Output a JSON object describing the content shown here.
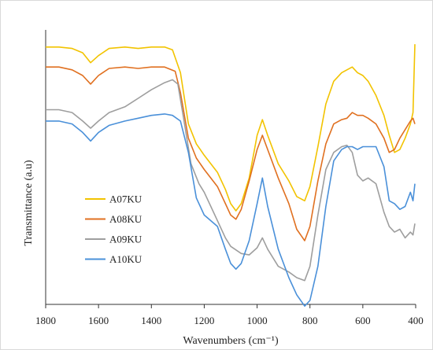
{
  "chart_data": {
    "type": "line",
    "title": "",
    "xlabel": "Wavenumbers (cm⁻¹)",
    "ylabel": "Transmittance (a.u)",
    "xlim": [
      1800,
      400
    ],
    "x_reversed": true,
    "ylim": [
      0,
      100
    ],
    "yticks_shown": false,
    "xticks": [
      1800,
      1600,
      1400,
      1200,
      1000,
      800,
      600,
      400
    ],
    "xtick_labels": [
      "1800",
      "1600",
      "1400",
      "1200",
      "1000",
      "800",
      "600",
      "400"
    ],
    "grid": false,
    "legend_position": "left-center",
    "series": [
      {
        "name": "A07KU",
        "color": "#f2c300",
        "points": [
          [
            1800,
            89
          ],
          [
            1750,
            89
          ],
          [
            1700,
            88.5
          ],
          [
            1660,
            87
          ],
          [
            1630,
            83.5
          ],
          [
            1600,
            86
          ],
          [
            1560,
            88.5
          ],
          [
            1500,
            89
          ],
          [
            1450,
            88.5
          ],
          [
            1400,
            89
          ],
          [
            1350,
            89
          ],
          [
            1320,
            88
          ],
          [
            1290,
            80
          ],
          [
            1260,
            62
          ],
          [
            1230,
            55
          ],
          [
            1200,
            51
          ],
          [
            1150,
            45
          ],
          [
            1120,
            39
          ],
          [
            1100,
            34
          ],
          [
            1080,
            31.5
          ],
          [
            1060,
            34
          ],
          [
            1030,
            43
          ],
          [
            1000,
            58
          ],
          [
            980,
            63.5
          ],
          [
            960,
            58
          ],
          [
            920,
            48
          ],
          [
            880,
            42
          ],
          [
            850,
            36.5
          ],
          [
            820,
            35
          ],
          [
            800,
            40
          ],
          [
            770,
            54
          ],
          [
            740,
            69
          ],
          [
            710,
            77
          ],
          [
            680,
            80
          ],
          [
            660,
            81
          ],
          [
            640,
            82
          ],
          [
            620,
            80
          ],
          [
            600,
            79
          ],
          [
            580,
            77
          ],
          [
            550,
            72
          ],
          [
            520,
            65
          ],
          [
            500,
            58
          ],
          [
            480,
            52
          ],
          [
            460,
            53
          ],
          [
            440,
            57
          ],
          [
            420,
            62
          ],
          [
            410,
            66
          ],
          [
            403,
            90
          ]
        ]
      },
      {
        "name": "A08KU",
        "color": "#e07020",
        "points": [
          [
            1800,
            82
          ],
          [
            1750,
            82
          ],
          [
            1700,
            81
          ],
          [
            1660,
            79
          ],
          [
            1630,
            76
          ],
          [
            1600,
            79
          ],
          [
            1560,
            81.5
          ],
          [
            1500,
            82
          ],
          [
            1450,
            81.5
          ],
          [
            1400,
            82
          ],
          [
            1350,
            82
          ],
          [
            1310,
            80.5
          ],
          [
            1290,
            73
          ],
          [
            1260,
            57
          ],
          [
            1230,
            50
          ],
          [
            1200,
            46
          ],
          [
            1150,
            40
          ],
          [
            1120,
            34
          ],
          [
            1100,
            30
          ],
          [
            1080,
            28.5
          ],
          [
            1060,
            32
          ],
          [
            1030,
            42
          ],
          [
            1000,
            53
          ],
          [
            980,
            58
          ],
          [
            960,
            53
          ],
          [
            920,
            43
          ],
          [
            880,
            34
          ],
          [
            850,
            25
          ],
          [
            820,
            21
          ],
          [
            800,
            26
          ],
          [
            770,
            42
          ],
          [
            740,
            55
          ],
          [
            710,
            62
          ],
          [
            680,
            63.5
          ],
          [
            660,
            64
          ],
          [
            640,
            66
          ],
          [
            620,
            65
          ],
          [
            600,
            65
          ],
          [
            580,
            64
          ],
          [
            550,
            62
          ],
          [
            520,
            57
          ],
          [
            500,
            52
          ],
          [
            480,
            53
          ],
          [
            460,
            57
          ],
          [
            440,
            60
          ],
          [
            420,
            63
          ],
          [
            410,
            64
          ],
          [
            403,
            62
          ]
        ]
      },
      {
        "name": "A09KU",
        "color": "#9e9e9e",
        "points": [
          [
            1800,
            67
          ],
          [
            1750,
            67
          ],
          [
            1700,
            66
          ],
          [
            1660,
            63
          ],
          [
            1630,
            60.5
          ],
          [
            1600,
            63
          ],
          [
            1560,
            66
          ],
          [
            1500,
            68
          ],
          [
            1450,
            71
          ],
          [
            1400,
            74
          ],
          [
            1350,
            76.5
          ],
          [
            1320,
            77.5
          ],
          [
            1300,
            76
          ],
          [
            1280,
            65
          ],
          [
            1250,
            48
          ],
          [
            1220,
            41
          ],
          [
            1200,
            38
          ],
          [
            1150,
            28
          ],
          [
            1120,
            22
          ],
          [
            1100,
            19
          ],
          [
            1060,
            16.5
          ],
          [
            1030,
            16
          ],
          [
            1000,
            18.5
          ],
          [
            980,
            22
          ],
          [
            960,
            18
          ],
          [
            920,
            12
          ],
          [
            880,
            10
          ],
          [
            850,
            8
          ],
          [
            820,
            7
          ],
          [
            800,
            12
          ],
          [
            770,
            30
          ],
          [
            740,
            46
          ],
          [
            710,
            52
          ],
          [
            680,
            54
          ],
          [
            660,
            54.5
          ],
          [
            640,
            52
          ],
          [
            620,
            44
          ],
          [
            600,
            42
          ],
          [
            580,
            43
          ],
          [
            550,
            41
          ],
          [
            520,
            31
          ],
          [
            500,
            26
          ],
          [
            480,
            24
          ],
          [
            460,
            25
          ],
          [
            440,
            22
          ],
          [
            420,
            24
          ],
          [
            410,
            23
          ],
          [
            403,
            27
          ]
        ]
      },
      {
        "name": "A10KU",
        "color": "#4a90d9",
        "points": [
          [
            1800,
            63
          ],
          [
            1750,
            63
          ],
          [
            1700,
            62
          ],
          [
            1660,
            59
          ],
          [
            1630,
            56
          ],
          [
            1600,
            59
          ],
          [
            1560,
            61.5
          ],
          [
            1500,
            63
          ],
          [
            1450,
            64
          ],
          [
            1400,
            65
          ],
          [
            1350,
            65.5
          ],
          [
            1320,
            65
          ],
          [
            1290,
            63
          ],
          [
            1260,
            52
          ],
          [
            1230,
            36
          ],
          [
            1200,
            30
          ],
          [
            1150,
            26
          ],
          [
            1120,
            18
          ],
          [
            1100,
            13
          ],
          [
            1080,
            11
          ],
          [
            1060,
            13
          ],
          [
            1030,
            21
          ],
          [
            1000,
            34
          ],
          [
            980,
            43
          ],
          [
            960,
            33
          ],
          [
            920,
            18
          ],
          [
            880,
            8
          ],
          [
            850,
            2
          ],
          [
            820,
            -2
          ],
          [
            800,
            0
          ],
          [
            770,
            12
          ],
          [
            740,
            33
          ],
          [
            710,
            49
          ],
          [
            680,
            53
          ],
          [
            660,
            54
          ],
          [
            640,
            54
          ],
          [
            620,
            53
          ],
          [
            600,
            54
          ],
          [
            580,
            54
          ],
          [
            550,
            54
          ],
          [
            520,
            47
          ],
          [
            500,
            35
          ],
          [
            480,
            34
          ],
          [
            460,
            32
          ],
          [
            440,
            33
          ],
          [
            420,
            38
          ],
          [
            410,
            35
          ],
          [
            403,
            41
          ]
        ]
      }
    ]
  }
}
